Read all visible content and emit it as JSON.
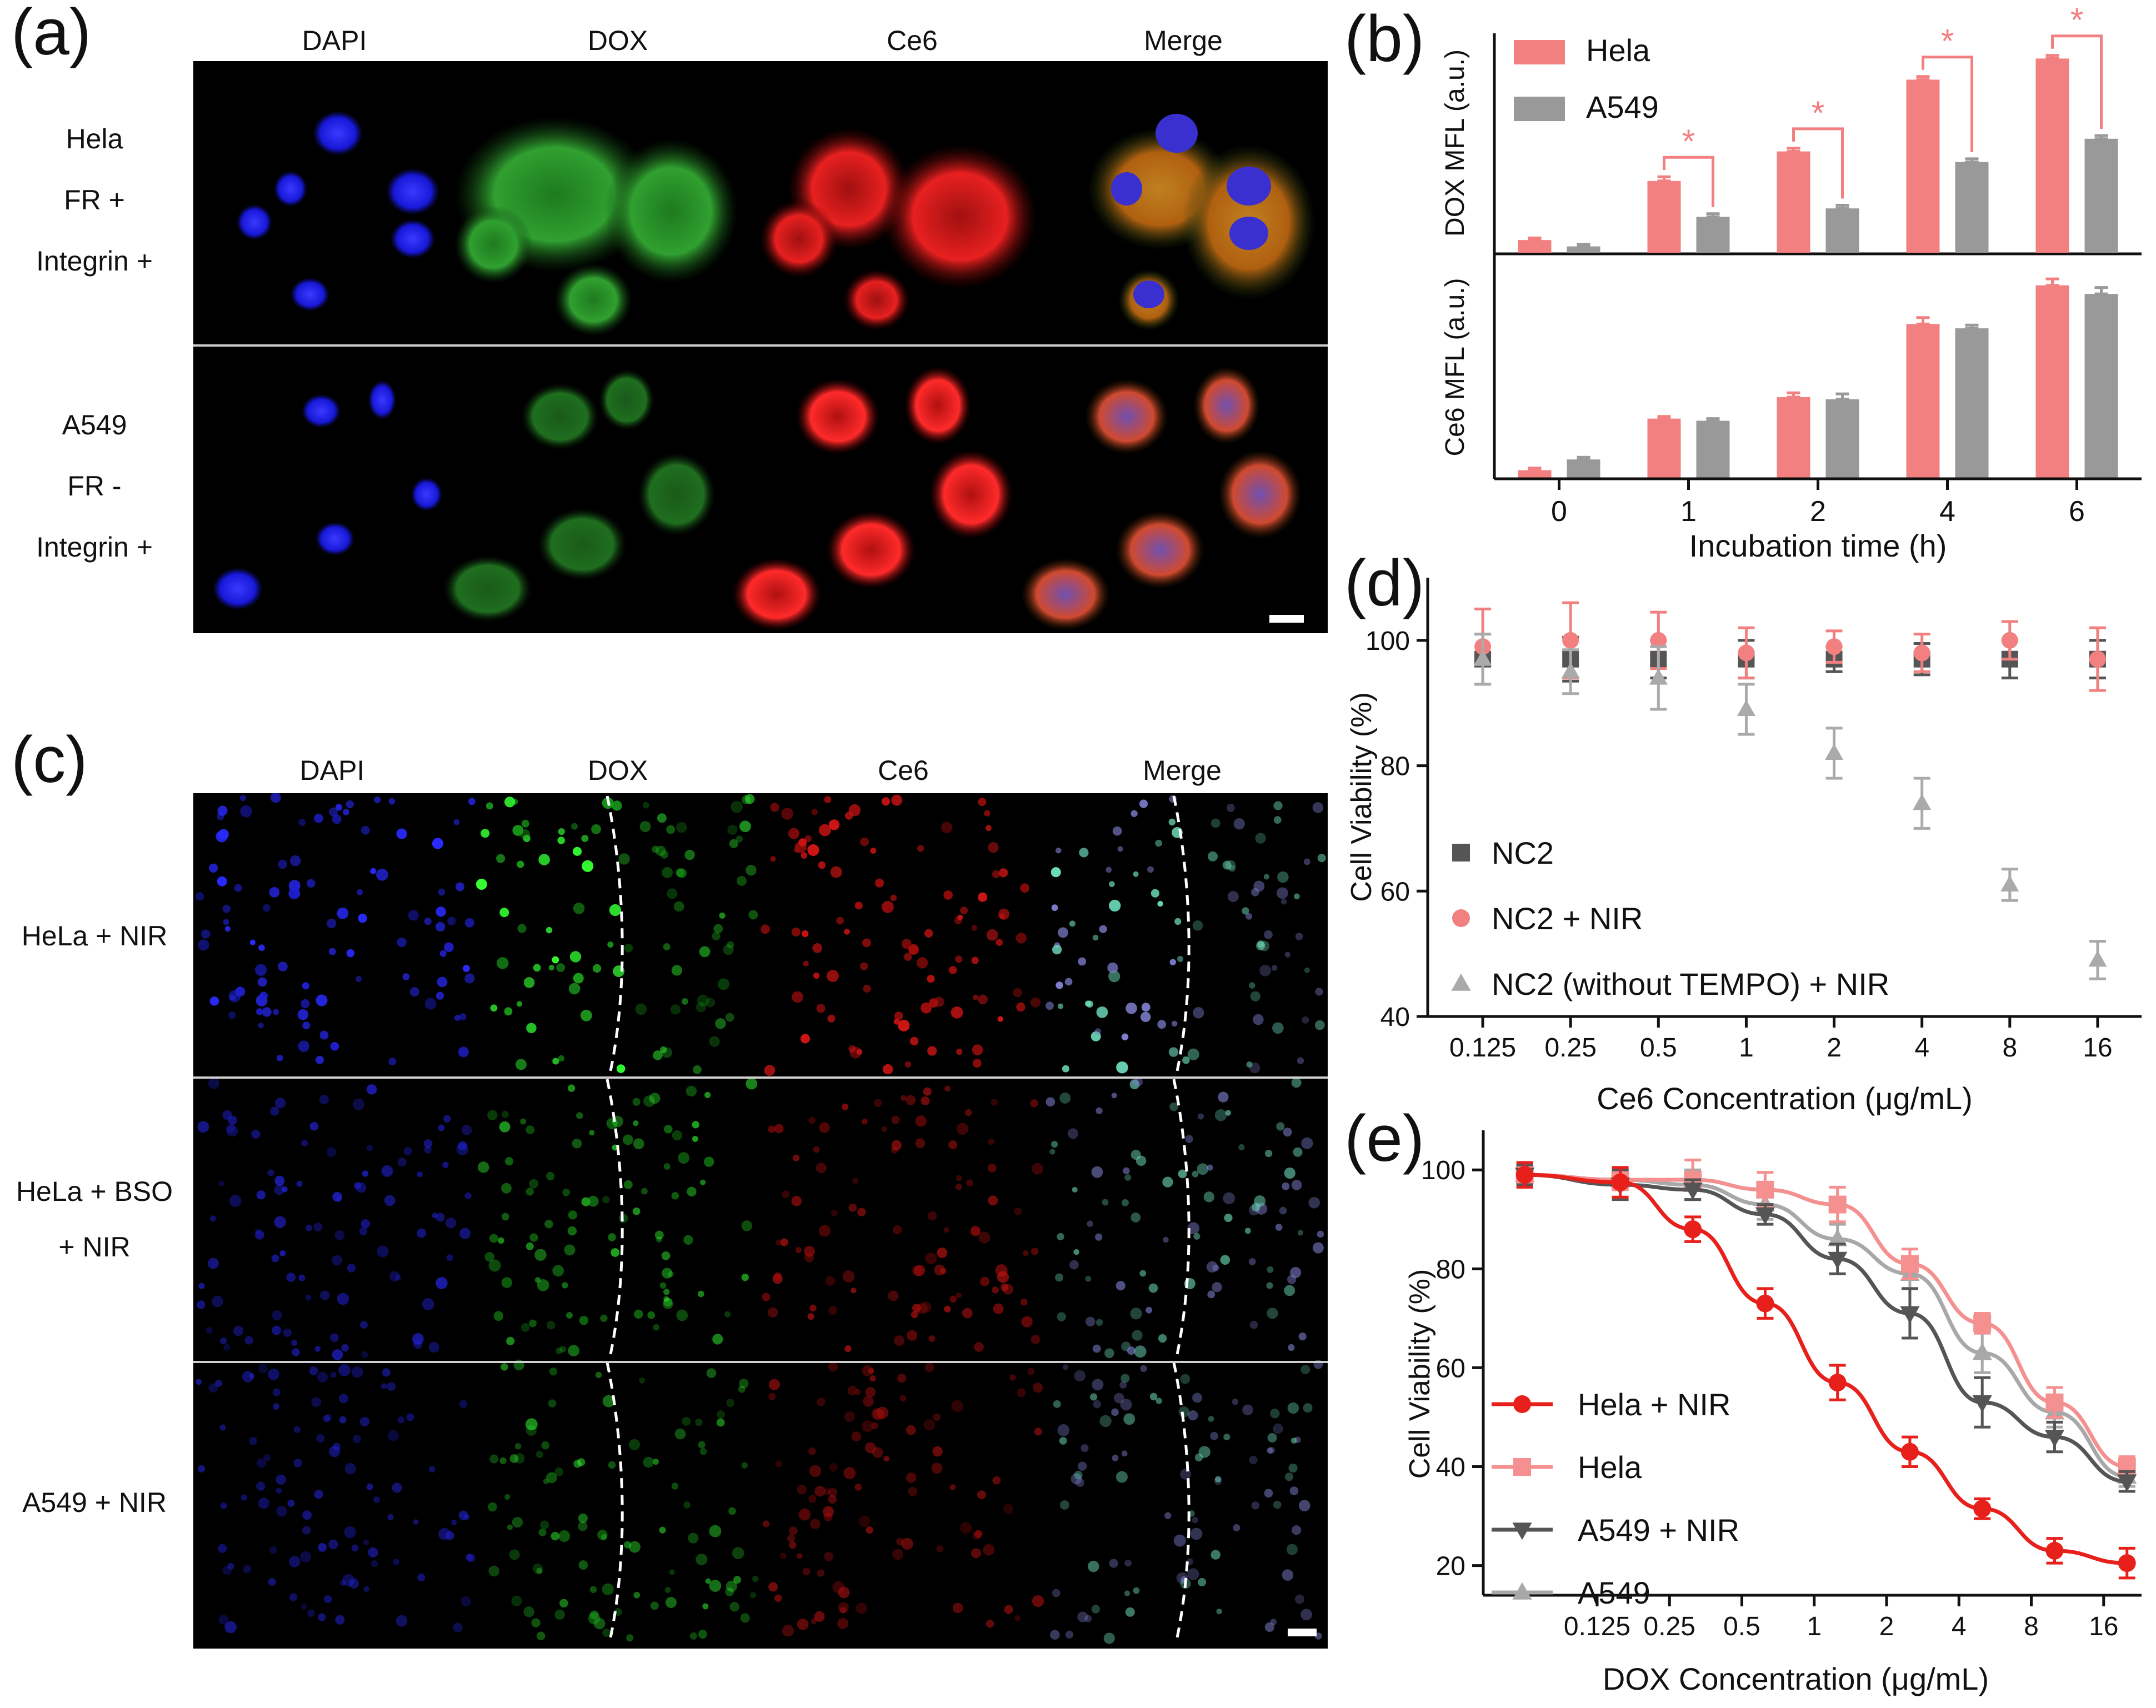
{
  "panels": {
    "a": {
      "letter": "(a)",
      "channels": [
        "DAPI",
        "DOX",
        "Ce6",
        "Merge"
      ],
      "rows": [
        {
          "lines": [
            "Hela",
            "FR +",
            "Integrin +"
          ]
        },
        {
          "lines": [
            "A549",
            "FR -",
            "Integrin +"
          ]
        }
      ]
    },
    "c": {
      "letter": "(c)",
      "channels": [
        "DAPI",
        "DOX",
        "Ce6",
        "Merge"
      ],
      "rows": [
        {
          "lines": [
            "HeLa + NIR"
          ]
        },
        {
          "lines": [
            "HeLa + BSO",
            "+ NIR"
          ]
        },
        {
          "lines": [
            "A549 + NIR"
          ]
        }
      ]
    }
  },
  "colors": {
    "hela": "#f28080",
    "a549": "#999999",
    "nc2": "#555555",
    "nc2_nir": "#f28080",
    "nc2_free": "#aaaaaa",
    "hela_nir": "#e8201c",
    "hela_curve": "#f59090",
    "a549_nir": "#555555",
    "a549_curve": "#a8a8a8",
    "star": "#f28080",
    "dapi": "#1a1aff",
    "dox": "#22cc22",
    "ce6": "#dd1111"
  },
  "chart_data": [
    {
      "id": "b",
      "letter": "(b)",
      "type": "bar",
      "categories": [
        "0",
        "1",
        "2",
        "4",
        "6"
      ],
      "xlabel": "Incubation time (h)",
      "legend": [
        "Hela",
        "A549"
      ],
      "significance": "*",
      "subplots": [
        {
          "ylabel": "DOX MFL (a.u.)",
          "ylim": [
            0,
            100
          ],
          "series": [
            {
              "name": "Hela",
              "values": [
                6,
                34,
                48,
                82,
                92
              ],
              "errors": [
                1,
                2,
                1.5,
                1.5,
                1.5
              ]
            },
            {
              "name": "A549",
              "values": [
                3,
                17,
                21,
                43,
                54
              ],
              "errors": [
                1,
                1.5,
                1.5,
                1.5,
                1.5
              ]
            }
          ]
        },
        {
          "ylabel": "Ce6 MFL (a.u.)",
          "ylim": [
            0,
            100
          ],
          "series": [
            {
              "name": "Hela",
              "values": [
                4,
                28,
                38,
                72,
                90
              ],
              "errors": [
                1,
                1,
                2,
                3,
                3
              ]
            },
            {
              "name": "A549",
              "values": [
                9,
                27,
                37,
                70,
                86
              ],
              "errors": [
                1,
                1,
                2.5,
                1.5,
                3
              ]
            }
          ]
        }
      ]
    },
    {
      "id": "d",
      "letter": "(d)",
      "type": "scatter",
      "xlabel": "Ce6 Concentration (μg/mL)",
      "ylabel": "Cell Viability (%)",
      "categories": [
        "0.125",
        "0.25",
        "0.5",
        "1",
        "2",
        "4",
        "8",
        "16"
      ],
      "yticks": [
        40,
        60,
        80,
        100
      ],
      "ylim": [
        40,
        110
      ],
      "series": [
        {
          "name": "NC2",
          "marker": "square",
          "values": [
            97,
            97,
            97,
            97,
            97,
            97,
            97,
            97
          ],
          "errors": [
            4,
            3.5,
            3,
            3,
            2,
            2.5,
            3,
            3
          ]
        },
        {
          "name": "NC2 + NIR",
          "marker": "circle",
          "values": [
            99,
            100,
            100,
            98,
            99,
            98,
            100,
            97
          ],
          "errors": [
            6,
            6,
            4.5,
            4,
            2.5,
            3,
            3,
            5
          ]
        },
        {
          "name": "NC2 (without TEMPO) + NIR",
          "marker": "triangle",
          "values": [
            97,
            95,
            94,
            89,
            82,
            74,
            61,
            49
          ],
          "errors": [
            4,
            3.5,
            5,
            4,
            4,
            4,
            2.5,
            3
          ]
        }
      ]
    },
    {
      "id": "e",
      "letter": "(e)",
      "type": "line",
      "xlabel": "DOX Concentration (μg/mL)",
      "ylabel": "Cell Viability (%)",
      "xticks": [
        "0.125",
        "0.25",
        "0.5",
        "1",
        "2",
        "4",
        "8",
        "16"
      ],
      "x": [
        0.0625,
        0.156,
        0.3125,
        0.625,
        1.25,
        2.5,
        5,
        10,
        20
      ],
      "yticks": [
        20,
        40,
        60,
        80,
        100
      ],
      "ylim": [
        14,
        108
      ],
      "series": [
        {
          "name": "Hela + NIR",
          "marker": "circle",
          "values": [
            99,
            97.5,
            88,
            73,
            57,
            43,
            31.5,
            23,
            20.5
          ],
          "errors": [
            2.5,
            3,
            2.5,
            3,
            3.5,
            3,
            2,
            2.5,
            3
          ]
        },
        {
          "name": "Hela",
          "marker": "square",
          "values": [
            99,
            98,
            98,
            96,
            93,
            81,
            69,
            53,
            40
          ],
          "errors": [
            2,
            2,
            4,
            3.5,
            3.5,
            3,
            2,
            3,
            2
          ]
        },
        {
          "name": "A549 + NIR",
          "marker": "triangle-down",
          "values": [
            99,
            97,
            96,
            91,
            82,
            71,
            53,
            46,
            37
          ],
          "errors": [
            2,
            3,
            2,
            2,
            3,
            5,
            5,
            3,
            2
          ]
        },
        {
          "name": "A549",
          "marker": "triangle",
          "values": [
            99,
            98,
            97,
            93,
            86,
            79,
            63,
            51,
            38
          ],
          "errors": [
            2,
            2,
            3,
            3,
            3,
            3,
            4,
            3,
            2
          ]
        }
      ]
    }
  ]
}
